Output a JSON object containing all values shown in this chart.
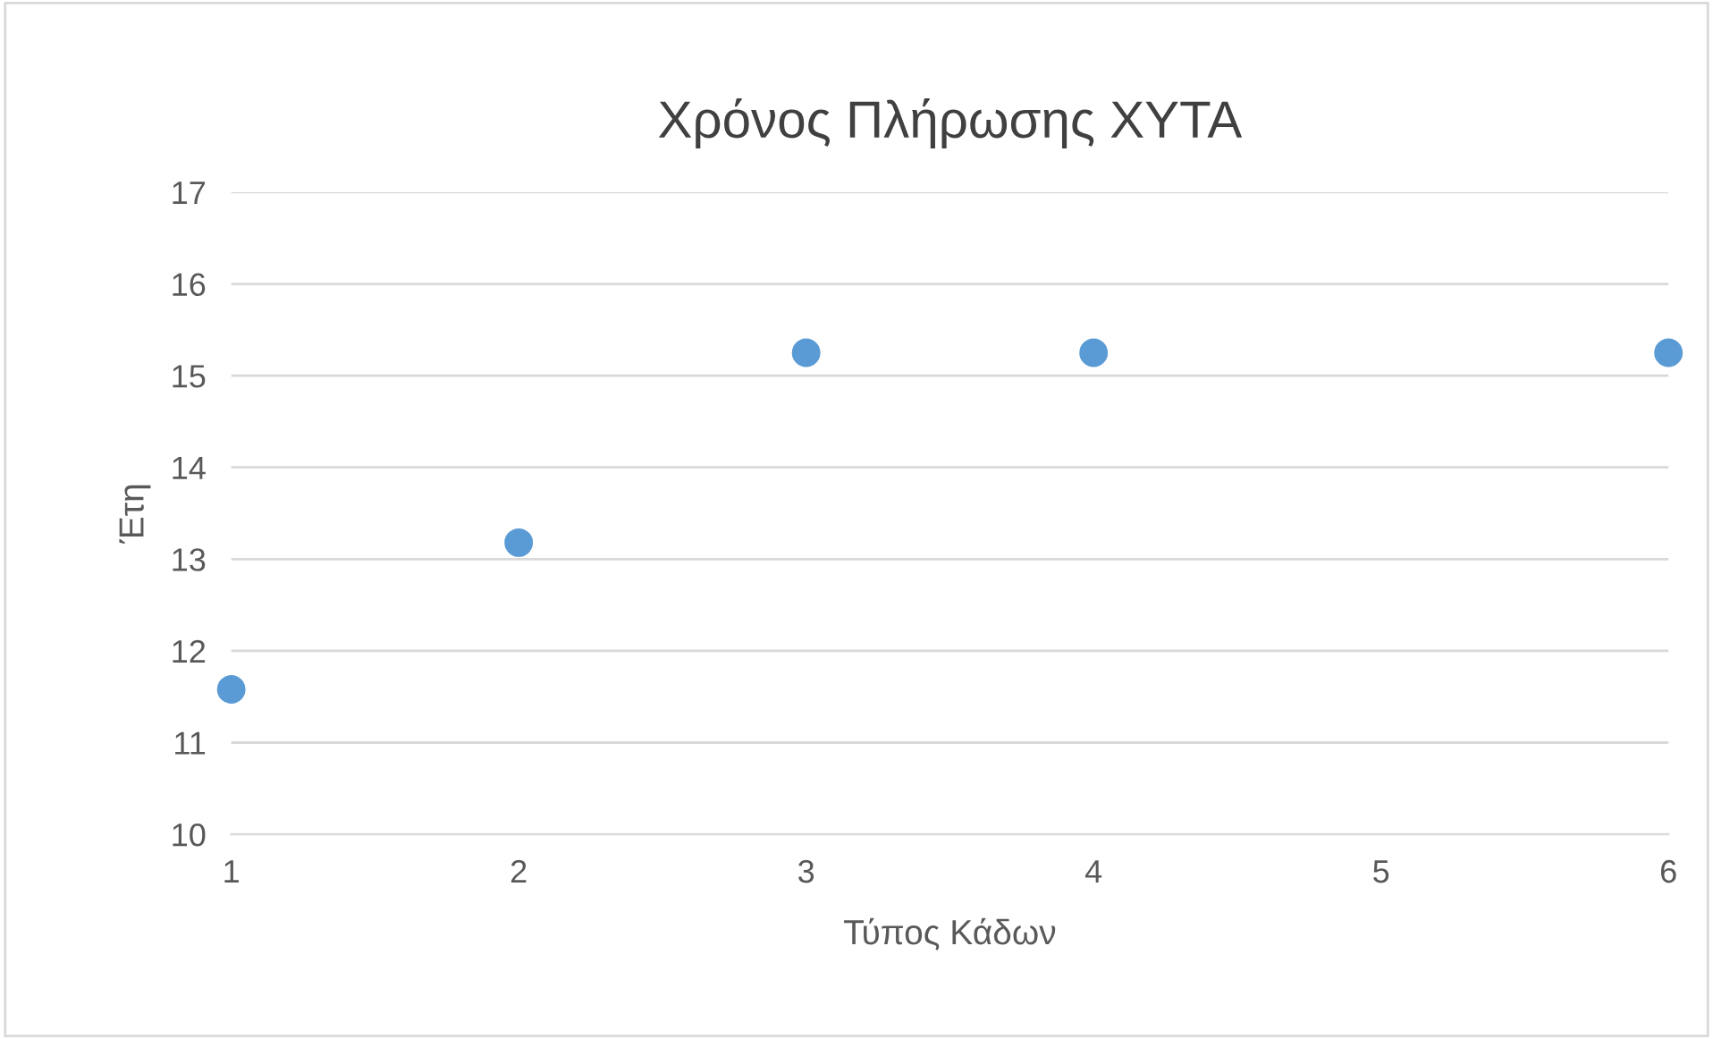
{
  "chart_data": {
    "type": "scatter",
    "title": "Χρόνος Πλήρωσης ΧΥΤΑ",
    "xlabel": "Τύπος Κάδων",
    "ylabel": "Έτη",
    "x": [
      1,
      2,
      3,
      4,
      6
    ],
    "series": [
      {
        "color": "#5b9bd5",
        "values": [
          11.58,
          13.18,
          15.25,
          15.25,
          15.25
        ]
      }
    ],
    "xlim": [
      1,
      6
    ],
    "xticks": [
      1,
      2,
      3,
      4,
      5,
      6
    ],
    "ylim": [
      10,
      17
    ],
    "yticks": [
      10,
      11,
      12,
      13,
      14,
      15,
      16,
      17
    ],
    "grid": "y",
    "marker": "circle",
    "legend": false
  }
}
